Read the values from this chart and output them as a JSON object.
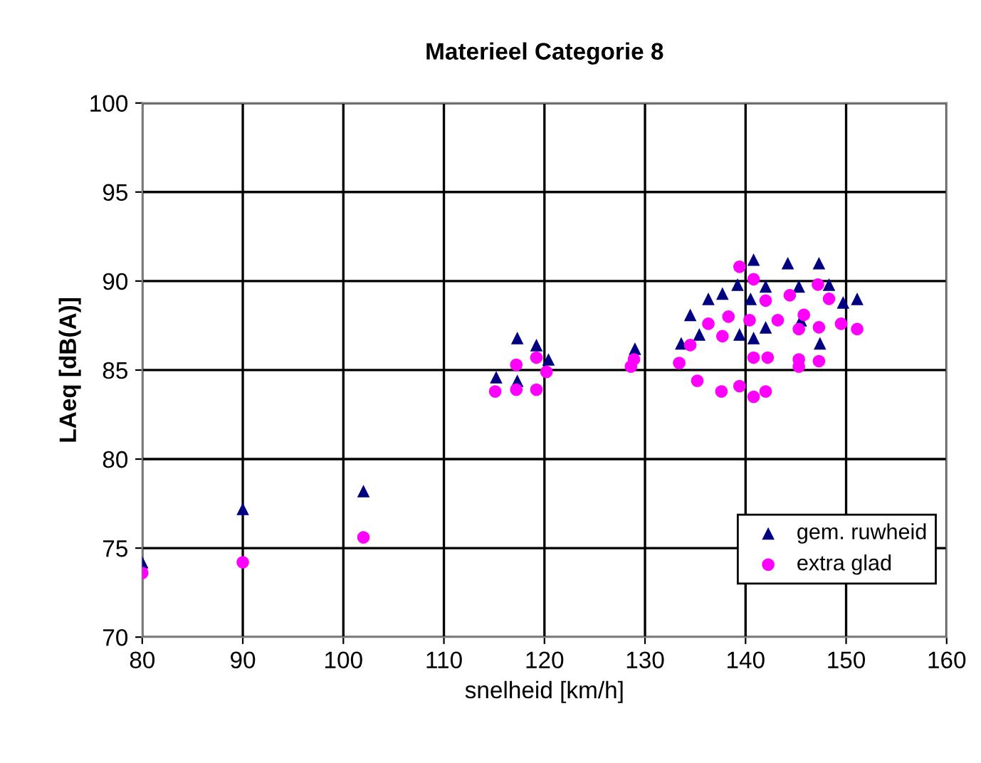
{
  "chart_data": {
    "type": "scatter",
    "title": "Materieel Categorie 8",
    "xlabel": "snelheid [km/h]",
    "ylabel": "LAeq [dB(A)]",
    "xlim": [
      80,
      160
    ],
    "xticks": [
      80,
      90,
      100,
      110,
      120,
      130,
      140,
      150,
      160
    ],
    "ylim": [
      70,
      100
    ],
    "yticks": [
      70,
      75,
      80,
      85,
      90,
      95,
      100
    ],
    "grid": true,
    "legend": "bottom right",
    "series": [
      {
        "name": "gem. ruwheid",
        "color": "#000080",
        "marker": "triangle",
        "x": [
          80,
          90,
          102,
          115.2,
          117.3,
          117.3,
          119.2,
          120.4,
          129,
          133.6,
          134.5,
          135.4,
          136.3,
          137.7,
          139.2,
          139.4,
          140.8,
          140.5,
          140.8,
          142.0,
          142.0,
          144.2,
          145.3,
          145.5,
          147.3,
          147.4,
          148.3,
          149.7,
          151.1
        ],
        "values": [
          74.2,
          77.2,
          78.2,
          84.6,
          86.8,
          84.4,
          86.4,
          85.6,
          86.2,
          86.5,
          88.1,
          87.0,
          89.0,
          89.3,
          89.8,
          87.0,
          91.2,
          89.0,
          86.8,
          89.7,
          87.4,
          91.0,
          89.7,
          87.8,
          91.0,
          86.5,
          89.8,
          88.8,
          89.0
        ]
      },
      {
        "name": "extra glad",
        "color": "#ff00ff",
        "marker": "circle",
        "x": [
          80,
          90,
          102,
          115.1,
          117.2,
          117.2,
          119.2,
          119.2,
          120.2,
          128.6,
          128.9,
          133.4,
          134.5,
          135.2,
          136.3,
          137.7,
          137.6,
          138.3,
          139.4,
          139.4,
          140.4,
          140.8,
          140.8,
          140.8,
          142.0,
          142.2,
          142.0,
          143.2,
          144.4,
          145.3,
          145.3,
          145.3,
          145.8,
          147.2,
          147.3,
          147.3,
          148.3,
          149.5,
          151.1
        ],
        "values": [
          73.6,
          74.2,
          75.6,
          83.8,
          85.3,
          83.9,
          85.7,
          83.9,
          84.9,
          85.2,
          85.6,
          85.4,
          86.4,
          84.4,
          87.6,
          86.9,
          83.8,
          88.0,
          90.8,
          84.1,
          87.8,
          90.1,
          85.7,
          83.5,
          88.9,
          85.7,
          83.8,
          87.8,
          89.2,
          87.3,
          85.6,
          85.2,
          88.1,
          89.8,
          87.4,
          85.5,
          89.0,
          87.6,
          87.3
        ]
      }
    ]
  }
}
